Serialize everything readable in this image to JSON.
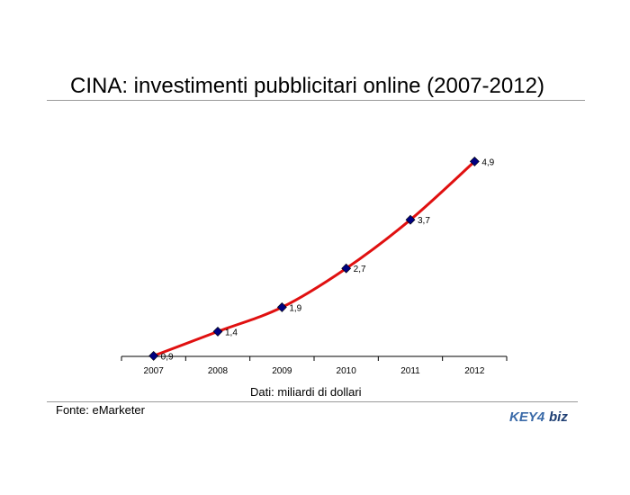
{
  "header": {
    "title": "CINA: investimenti pubblicitari online (2007-2012)"
  },
  "footer": {
    "source": "Fonte: eMarketer"
  },
  "logo": {
    "text_main": "KEY4",
    "text_biz": "biz",
    "color_main": "#3a6aa8",
    "color_biz": "#1f3f73"
  },
  "chart_data": {
    "type": "line",
    "title": "CINA: investimenti pubblicitari online (2007-2012)",
    "xlabel": "Dati: miliardi di dollari",
    "ylabel": "",
    "categories": [
      "2007",
      "2008",
      "2009",
      "2010",
      "2011",
      "2012"
    ],
    "series": [
      {
        "values": [
          0.9,
          1.4,
          1.9,
          2.7,
          3.7,
          4.9
        ],
        "labels": [
          "0,9",
          "1,4",
          "1,9",
          "2,7",
          "3,7",
          "4,9"
        ],
        "line_color": "#e01010",
        "marker_color": "#000080"
      }
    ],
    "grid": false,
    "legend": "none"
  }
}
